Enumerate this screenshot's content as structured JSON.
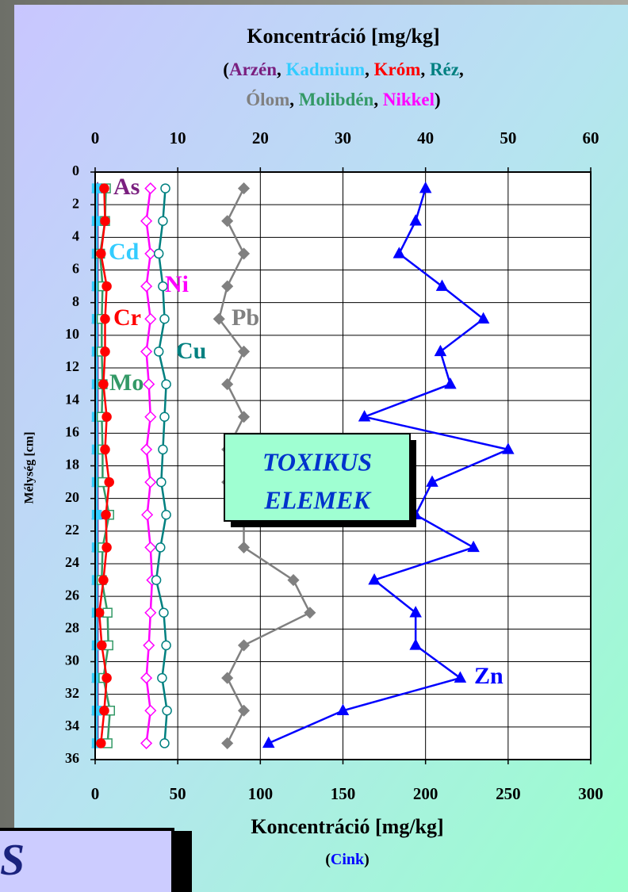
{
  "chart_data": {
    "type": "line",
    "title": "Koncentráció [mg/kg]",
    "subtitle_lines": [
      [
        {
          "text": "(",
          "color": "#000000"
        },
        {
          "text": "Arzén",
          "color": "#7a1f7f"
        },
        {
          "text": ", ",
          "color": "#000000"
        },
        {
          "text": "Kadmium",
          "color": "#33ccff"
        },
        {
          "text": ", ",
          "color": "#000000"
        },
        {
          "text": "Króm",
          "color": "#ff0000"
        },
        {
          "text": ", ",
          "color": "#000000"
        },
        {
          "text": "Réz",
          "color": "#008080"
        },
        {
          "text": ",",
          "color": "#000000"
        }
      ],
      [
        {
          "text": "Ólom",
          "color": "#808080"
        },
        {
          "text": ", ",
          "color": "#000000"
        },
        {
          "text": "Molibdén",
          "color": "#339966"
        },
        {
          "text": ", ",
          "color": "#000000"
        },
        {
          "text": "Nikkel",
          "color": "#ff00ff"
        },
        {
          "text": ")",
          "color": "#000000"
        }
      ]
    ],
    "x2_title": "Koncentráció [mg/kg]",
    "x2_subtitle": [
      {
        "text": "(",
        "color": "#000000"
      },
      {
        "text": "Cink",
        "color": "#0000ff"
      },
      {
        "text": ")",
        "color": "#000000"
      }
    ],
    "y_title": "Mélység [cm]",
    "box_lines": [
      "TOXIKUS",
      "ELEMEK"
    ],
    "corner_text": "S",
    "xlim": [
      0,
      60
    ],
    "xticks": [
      0,
      10,
      20,
      30,
      40,
      50,
      60
    ],
    "x2lim": [
      0,
      300
    ],
    "x2ticks": [
      0,
      50,
      100,
      150,
      200,
      250,
      300
    ],
    "ylim": [
      0,
      36
    ],
    "yticks": [
      0,
      2,
      4,
      6,
      8,
      10,
      12,
      14,
      16,
      18,
      20,
      22,
      24,
      26,
      28,
      30,
      32,
      34,
      36
    ],
    "y_inverted": true,
    "grid": true,
    "depths": [
      1,
      3,
      5,
      7,
      9,
      11,
      13,
      15,
      17,
      19,
      21,
      23,
      25,
      27,
      29,
      31,
      33,
      35
    ],
    "series": [
      {
        "name": "As",
        "color": "#7a1f7f",
        "marker": "triangle",
        "filled": true,
        "values": [
          0.3,
          0.3,
          0.3,
          0.3,
          0.3,
          0.3,
          0.3,
          0.3,
          0.3,
          0.3,
          0.3,
          0.3,
          0.3,
          0.3,
          0.3,
          0.3,
          0.3,
          0.3
        ]
      },
      {
        "name": "Cd",
        "color": "#33ccff",
        "marker": "square",
        "filled": true,
        "values": [
          0.2,
          0.2,
          0.2,
          0.2,
          0.2,
          0.2,
          0.2,
          0.2,
          0.2,
          0.2,
          0.2,
          0.2,
          0.2,
          0.2,
          0.2,
          0.2,
          0.2,
          0.2
        ]
      },
      {
        "name": "Mo",
        "color": "#339966",
        "marker": "square",
        "filled": false,
        "values": [
          1.3,
          1.2,
          0.6,
          0.9,
          0.8,
          0.8,
          0.9,
          0.8,
          0.9,
          0.9,
          1.7,
          0.9,
          0.8,
          1.5,
          1.6,
          1.0,
          1.8,
          1.5
        ]
      },
      {
        "name": "Cr",
        "color": "#ff0000",
        "marker": "circle",
        "filled": true,
        "values": [
          1.1,
          1.2,
          0.7,
          1.4,
          1.2,
          1.2,
          1.0,
          1.4,
          1.2,
          1.7,
          1.3,
          1.4,
          1.0,
          0.5,
          0.8,
          1.4,
          1.1,
          0.7
        ]
      },
      {
        "name": "Ni",
        "color": "#ff00ff",
        "marker": "diamond",
        "filled": false,
        "values": [
          6.7,
          6.2,
          6.7,
          6.2,
          6.7,
          6.2,
          6.5,
          6.7,
          6.2,
          6.7,
          6.3,
          6.7,
          6.9,
          6.7,
          6.5,
          6.2,
          6.7,
          6.2
        ]
      },
      {
        "name": "Cu",
        "color": "#008080",
        "marker": "circle",
        "filled": false,
        "values": [
          8.5,
          8.2,
          7.7,
          8.2,
          8.4,
          7.7,
          8.6,
          8.4,
          8.2,
          8.0,
          8.6,
          7.9,
          7.4,
          8.3,
          8.6,
          8.1,
          8.7,
          8.4
        ]
      },
      {
        "name": "Pb",
        "color": "#808080",
        "marker": "diamond",
        "filled": true,
        "values": [
          18,
          16,
          18,
          16,
          15,
          18,
          16,
          18,
          16,
          16,
          18,
          18,
          24,
          26,
          18,
          16,
          18,
          16
        ]
      },
      {
        "name": "Zn",
        "color": "#0000ff",
        "marker": "triangle",
        "filled": true,
        "axis": "x2",
        "values": [
          200,
          194,
          184,
          210,
          235,
          209,
          215,
          163,
          250,
          204,
          194,
          229,
          169,
          194,
          194,
          221,
          150,
          105
        ]
      }
    ]
  }
}
